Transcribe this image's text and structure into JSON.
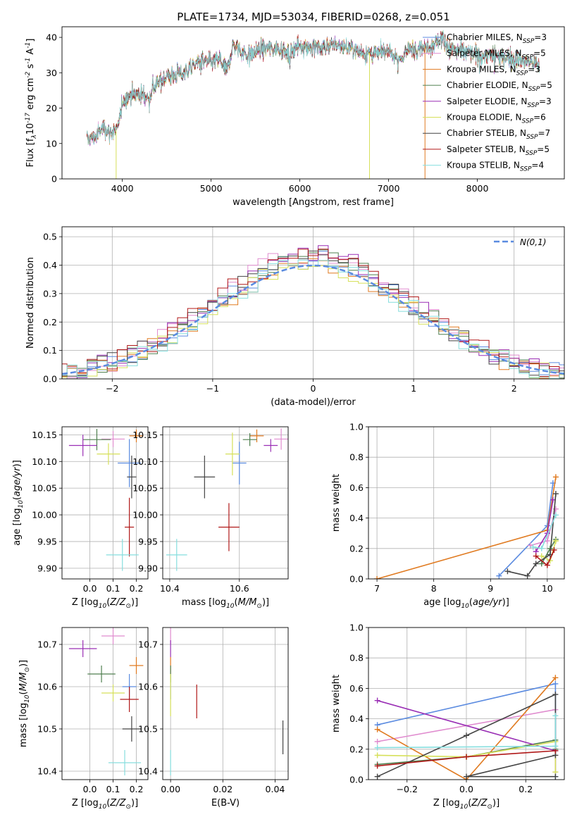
{
  "figure": {
    "title": "PLATE=1734, MJD=53034, FIBERID=0268, z=0.051"
  },
  "colors": {
    "chabrier_miles": "#5b8be0",
    "salpeter_miles": "#e08ccf",
    "kroupa_miles": "#e07a20",
    "chabrier_elodie": "#4f7f4f",
    "salpeter_elodie": "#9a2fb5",
    "kroupa_elodie": "#d6e05a",
    "chabrier_stelib": "#444444",
    "salpeter_stelib": "#b01818",
    "kroupa_stelib": "#86dede"
  },
  "chart_data": [
    {
      "id": "spectrum",
      "type": "line",
      "xlabel": "wavelength [Angstrom, rest frame]",
      "ylabel": "Flux [f$_\\lambda$10$^{-17}$ erg cm$^{-2}$ s$^{-1}$ A$^{-1}$]",
      "xlim": [
        3320,
        8980
      ],
      "ylim": [
        0,
        43
      ],
      "xticks": [
        "4000",
        "5000",
        "6000",
        "7000",
        "8000"
      ],
      "yticks": [
        "0",
        "10",
        "20",
        "30",
        "40"
      ],
      "grid": false,
      "legend_position": "right",
      "legend": [
        {
          "label": "Chabrier MILES, N$_{SSP}$=3",
          "color": "#5b8be0"
        },
        {
          "label": "Salpeter MILES, N$_{SSP}$=5",
          "color": "#e08ccf"
        },
        {
          "label": "Kroupa MILES, N$_{SSP}$=3",
          "color": "#e07a20"
        },
        {
          "label": "Chabrier ELODIE, N$_{SSP}$=5",
          "color": "#4f7f4f"
        },
        {
          "label": "Salpeter ELODIE, N$_{SSP}$=3",
          "color": "#9a2fb5"
        },
        {
          "label": "Kroupa ELODIE, N$_{SSP}$=6",
          "color": "#d6e05a"
        },
        {
          "label": "Chabrier STELIB, N$_{SSP}$=7",
          "color": "#444444"
        },
        {
          "label": "Salpeter STELIB, N$_{SSP}$=5",
          "color": "#b01818"
        },
        {
          "label": "Kroupa STELIB, N$_{SSP}$=4",
          "color": "#86dede"
        }
      ],
      "continuum": [
        [
          3600,
          11
        ],
        [
          3700,
          12
        ],
        [
          3800,
          15
        ],
        [
          3850,
          13
        ],
        [
          3950,
          14
        ],
        [
          4000,
          22
        ],
        [
          4100,
          24
        ],
        [
          4200,
          24
        ],
        [
          4300,
          23
        ],
        [
          4350,
          26
        ],
        [
          4500,
          29
        ],
        [
          4700,
          30
        ],
        [
          4850,
          33
        ],
        [
          5000,
          33
        ],
        [
          5100,
          34
        ],
        [
          5170,
          30
        ],
        [
          5250,
          38
        ],
        [
          5400,
          35
        ],
        [
          5600,
          37
        ],
        [
          5800,
          37
        ],
        [
          5890,
          34
        ],
        [
          5900,
          36
        ],
        [
          6000,
          38
        ],
        [
          6200,
          37
        ],
        [
          6400,
          38
        ],
        [
          6563,
          37
        ],
        [
          6700,
          36
        ],
        [
          6870,
          35
        ],
        [
          7000,
          37
        ],
        [
          7100,
          33
        ],
        [
          7200,
          36
        ],
        [
          7300,
          37
        ],
        [
          7500,
          38
        ],
        [
          7600,
          40
        ],
        [
          7700,
          37
        ],
        [
          8000,
          35
        ],
        [
          8200,
          35
        ],
        [
          8400,
          34
        ],
        [
          8600,
          33
        ],
        [
          8700,
          32
        ]
      ],
      "spikes": [
        {
          "x": 3930,
          "y": -3,
          "color": "#d6e05a"
        },
        {
          "x": 6785,
          "y": -5,
          "color": "#d6e05a"
        },
        {
          "x": 7410,
          "y": -5,
          "color": "#e07a20"
        }
      ]
    },
    {
      "id": "residuals",
      "type": "histogram",
      "xlabel": "(data-model)/error",
      "ylabel": "Normed distribution",
      "xlim": [
        -2.5,
        2.5
      ],
      "ylim": [
        0,
        0.535
      ],
      "xticks": [
        -2,
        -1,
        0,
        1,
        2
      ],
      "yticks": [
        0.0,
        0.1,
        0.2,
        0.3,
        0.4,
        0.5
      ],
      "grid": true,
      "legend_position": "top-right",
      "gaussian_label": "$\\mathcal{N}(0,1)$",
      "gaussian_color": "#5b8be0"
    },
    {
      "id": "age_vs_z",
      "type": "errorbar",
      "xlabel": "Z [log$_{10}$($Z/Z_\\odot$)]",
      "ylabel": "age  [log$_{10}$($age/yr$)]",
      "xlim": [
        -0.12,
        0.25
      ],
      "ylim": [
        9.88,
        10.165
      ],
      "xticks": [
        0.0,
        0.1,
        0.2
      ],
      "yticks": [
        9.9,
        9.95,
        10.0,
        10.05,
        10.1,
        10.15
      ],
      "grid": true,
      "points": [
        {
          "x": 0.17,
          "y": 10.097,
          "xe": 0.05,
          "ye": 0.045,
          "color": "#5b8be0"
        },
        {
          "x": 0.1,
          "y": 10.142,
          "xe": 0.05,
          "ye": 0.015,
          "color": "#e08ccf"
        },
        {
          "x": 0.2,
          "y": 10.148,
          "xe": 0.03,
          "ye": 0.012,
          "color": "#e07a20"
        },
        {
          "x": 0.03,
          "y": 10.141,
          "xe": 0.06,
          "ye": 0.02,
          "color": "#4f7f4f"
        },
        {
          "x": -0.03,
          "y": 10.13,
          "xe": 0.06,
          "ye": 0.02,
          "color": "#9a2fb5"
        },
        {
          "x": 0.08,
          "y": 10.114,
          "xe": 0.05,
          "ye": 0.02,
          "color": "#d6e05a"
        },
        {
          "x": 0.18,
          "y": 10.071,
          "xe": 0.02,
          "ye": 0.04,
          "color": "#444444"
        },
        {
          "x": 0.17,
          "y": 9.977,
          "xe": 0.02,
          "ye": 0.055,
          "color": "#b01818"
        },
        {
          "x": 0.14,
          "y": 9.925,
          "xe": 0.07,
          "ye": 0.03,
          "color": "#86dede"
        }
      ]
    },
    {
      "id": "age_vs_mass",
      "type": "errorbar",
      "xlabel": "mass [log$_{10}$($M/M_\\odot$)]",
      "ylabel": "",
      "xlim": [
        10.38,
        10.74
      ],
      "ylim": [
        9.88,
        10.165
      ],
      "xticks": [
        10.4,
        10.6
      ],
      "yticks": [
        9.9,
        9.95,
        10.0,
        10.05,
        10.1,
        10.15
      ],
      "grid": true,
      "points": [
        {
          "x": 10.6,
          "y": 10.097,
          "xe": 0.02,
          "ye": 0.04,
          "color": "#5b8be0"
        },
        {
          "x": 10.72,
          "y": 10.142,
          "xe": 0.02,
          "ye": 0.02,
          "color": "#e08ccf"
        },
        {
          "x": 10.65,
          "y": 10.148,
          "xe": 0.02,
          "ye": 0.012,
          "color": "#e07a20"
        },
        {
          "x": 10.63,
          "y": 10.141,
          "xe": 0.02,
          "ye": 0.012,
          "color": "#4f7f4f"
        },
        {
          "x": 10.69,
          "y": 10.13,
          "xe": 0.02,
          "ye": 0.012,
          "color": "#9a2fb5"
        },
        {
          "x": 10.58,
          "y": 10.114,
          "xe": 0.02,
          "ye": 0.04,
          "color": "#d6e05a"
        },
        {
          "x": 10.5,
          "y": 10.071,
          "xe": 0.03,
          "ye": 0.04,
          "color": "#444444"
        },
        {
          "x": 10.57,
          "y": 9.977,
          "xe": 0.03,
          "ye": 0.045,
          "color": "#b01818"
        },
        {
          "x": 10.42,
          "y": 9.925,
          "xe": 0.03,
          "ye": 0.03,
          "color": "#86dede"
        }
      ]
    },
    {
      "id": "weight_vs_age",
      "type": "line",
      "xlabel": "age  [log$_{10}$($age/yr$)]",
      "ylabel": "mass weight",
      "xlim": [
        6.85,
        10.3
      ],
      "ylim": [
        0,
        1.0
      ],
      "xticks": [
        7,
        8,
        9,
        10
      ],
      "yticks": [
        0.0,
        0.2,
        0.4,
        0.6,
        0.8,
        1.0
      ],
      "grid": true,
      "series": [
        {
          "color": "#5b8be0",
          "points": [
            [
              9.15,
              0.02
            ],
            [
              10.0,
              0.35
            ],
            [
              10.1,
              0.63
            ]
          ]
        },
        {
          "color": "#e08ccf",
          "points": [
            [
              9.7,
              0.22
            ],
            [
              10.0,
              0.25
            ],
            [
              10.15,
              0.46
            ]
          ]
        },
        {
          "color": "#e07a20",
          "points": [
            [
              7.0,
              0.0
            ],
            [
              10.0,
              0.32
            ],
            [
              10.15,
              0.67
            ]
          ]
        },
        {
          "color": "#4f7f4f",
          "points": [
            [
              9.9,
              0.1
            ],
            [
              10.05,
              0.2
            ],
            [
              10.15,
              0.26
            ]
          ]
        },
        {
          "color": "#9a2fb5",
          "points": [
            [
              9.8,
              0.18
            ],
            [
              10.0,
              0.3
            ],
            [
              10.1,
              0.52
            ]
          ]
        },
        {
          "color": "#d6e05a",
          "points": [
            [
              9.9,
              0.15
            ],
            [
              10.05,
              0.12
            ],
            [
              10.15,
              0.25
            ]
          ]
        },
        {
          "color": "#444444",
          "points": [
            [
              9.3,
              0.05
            ],
            [
              9.65,
              0.02
            ],
            [
              9.8,
              0.1
            ],
            [
              10.05,
              0.16
            ],
            [
              10.15,
              0.56
            ]
          ]
        },
        {
          "color": "#b01818",
          "points": [
            [
              9.8,
              0.15
            ],
            [
              10.0,
              0.09
            ],
            [
              10.12,
              0.19
            ]
          ]
        },
        {
          "color": "#86dede",
          "points": [
            [
              9.75,
              0.21
            ],
            [
              9.9,
              0.2
            ],
            [
              10.15,
              0.42
            ]
          ]
        }
      ]
    },
    {
      "id": "mass_vs_z",
      "type": "errorbar",
      "xlabel": "Z [log$_{10}$($Z/Z_\\odot$)]",
      "ylabel": "mass [log$_{10}$($M/M_\\odot$)]",
      "xlim": [
        -0.12,
        0.25
      ],
      "ylim": [
        10.38,
        10.74
      ],
      "xticks": [
        0.0,
        0.1,
        0.2
      ],
      "yticks": [
        10.4,
        10.5,
        10.6,
        10.7
      ],
      "grid": true,
      "points": [
        {
          "x": 0.17,
          "y": 10.6,
          "xe": 0.03,
          "ye": 0.03,
          "color": "#5b8be0"
        },
        {
          "x": 0.1,
          "y": 10.72,
          "xe": 0.05,
          "ye": 0.02,
          "color": "#e08ccf"
        },
        {
          "x": 0.2,
          "y": 10.65,
          "xe": 0.03,
          "ye": 0.02,
          "color": "#e07a20"
        },
        {
          "x": 0.05,
          "y": 10.63,
          "xe": 0.06,
          "ye": 0.02,
          "color": "#4f7f4f"
        },
        {
          "x": -0.03,
          "y": 10.69,
          "xe": 0.06,
          "ye": 0.02,
          "color": "#9a2fb5"
        },
        {
          "x": 0.1,
          "y": 10.585,
          "xe": 0.05,
          "ye": 0.02,
          "color": "#d6e05a"
        },
        {
          "x": 0.18,
          "y": 10.5,
          "xe": 0.04,
          "ye": 0.03,
          "color": "#444444"
        },
        {
          "x": 0.17,
          "y": 10.57,
          "xe": 0.04,
          "ye": 0.03,
          "color": "#b01818"
        },
        {
          "x": 0.15,
          "y": 10.42,
          "xe": 0.07,
          "ye": 0.03,
          "color": "#86dede"
        }
      ]
    },
    {
      "id": "mass_vs_ebv",
      "type": "errorbar",
      "xlabel": "E(B-V)",
      "ylabel": "",
      "xlim": [
        -0.003,
        0.045
      ],
      "ylim": [
        10.38,
        10.74
      ],
      "xticks": [
        0.0,
        0.02,
        0.04
      ],
      "yticks": [
        10.4,
        10.5,
        10.6,
        10.7
      ],
      "grid": true,
      "points": [
        {
          "x": 0.0,
          "y": 10.6,
          "xe": 0,
          "ye": 0.03,
          "color": "#5b8be0"
        },
        {
          "x": 0.0,
          "y": 10.72,
          "xe": 0,
          "ye": 0.02,
          "color": "#e08ccf"
        },
        {
          "x": 0.0,
          "y": 10.65,
          "xe": 0,
          "ye": 0.02,
          "color": "#e07a20"
        },
        {
          "x": 0.0,
          "y": 10.63,
          "xe": 0,
          "ye": 0.02,
          "color": "#4f7f4f"
        },
        {
          "x": 0.0,
          "y": 10.69,
          "xe": 0,
          "ye": 0.02,
          "color": "#9a2fb5"
        },
        {
          "x": 0.0,
          "y": 10.58,
          "xe": 0,
          "ye": 0.05,
          "color": "#d6e05a"
        },
        {
          "x": 0.043,
          "y": 10.48,
          "xe": 0,
          "ye": 0.04,
          "color": "#444444"
        },
        {
          "x": 0.01,
          "y": 10.565,
          "xe": 0,
          "ye": 0.04,
          "color": "#b01818"
        },
        {
          "x": 0.0,
          "y": 10.42,
          "xe": 0,
          "ye": 0.03,
          "color": "#86dede"
        }
      ]
    },
    {
      "id": "weight_vs_z",
      "type": "line",
      "xlabel": "Z [log$_{10}$($Z/Z_\\odot$)]",
      "ylabel": "mass weight",
      "xlim": [
        -0.33,
        0.33
      ],
      "ylim": [
        0,
        1.0
      ],
      "xticks": [
        -0.2,
        0.0,
        0.2
      ],
      "yticks": [
        0.0,
        0.2,
        0.4,
        0.6,
        0.8,
        1.0
      ],
      "grid": true,
      "series": [
        {
          "color": "#5b8be0",
          "points": [
            [
              -0.3,
              0.36
            ],
            [
              0.3,
              0.63
            ],
            [
              0.3,
              0.02
            ]
          ]
        },
        {
          "color": "#e08ccf",
          "points": [
            [
              -0.3,
              0.25
            ],
            [
              0.3,
              0.46
            ],
            [
              0.3,
              0.05
            ]
          ]
        },
        {
          "color": "#e07a20",
          "points": [
            [
              -0.3,
              0.33
            ],
            [
              0.0,
              0.0
            ],
            [
              0.3,
              0.67
            ]
          ]
        },
        {
          "color": "#4f7f4f",
          "points": [
            [
              -0.3,
              0.1
            ],
            [
              0.0,
              0.15
            ],
            [
              0.3,
              0.26
            ],
            [
              0.3,
              0.2
            ]
          ]
        },
        {
          "color": "#9a2fb5",
          "points": [
            [
              -0.3,
              0.52
            ],
            [
              0.3,
              0.19
            ]
          ]
        },
        {
          "color": "#d6e05a",
          "points": [
            [
              -0.3,
              0.16
            ],
            [
              0.0,
              0.15
            ],
            [
              0.3,
              0.25
            ],
            [
              0.3,
              0.05
            ]
          ]
        },
        {
          "color": "#444444",
          "points": [
            [
              -0.3,
              0.02
            ],
            [
              0.0,
              0.29
            ],
            [
              0.3,
              0.56
            ],
            [
              0.3,
              0.16
            ],
            [
              0.0,
              0.02
            ],
            [
              0.3,
              0.02
            ]
          ]
        },
        {
          "color": "#b01818",
          "points": [
            [
              -0.3,
              0.09
            ],
            [
              0.0,
              0.15
            ],
            [
              0.3,
              0.19
            ]
          ]
        },
        {
          "color": "#86dede",
          "points": [
            [
              -0.3,
              0.21
            ],
            [
              0.3,
              0.22
            ],
            [
              0.3,
              0.42
            ]
          ]
        }
      ]
    }
  ]
}
